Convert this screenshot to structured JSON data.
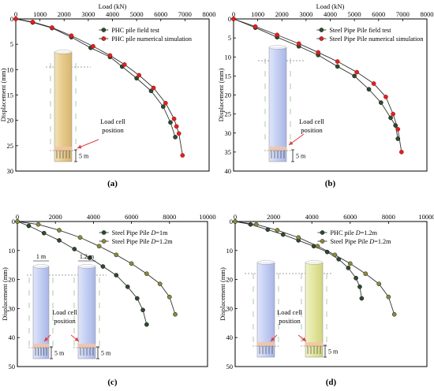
{
  "chart_data": [
    {
      "panel_label": "(a)",
      "type": "line",
      "xlabel": "Load (kN)",
      "ylabel": "Displacement (mm)",
      "xlim": [
        0,
        8000
      ],
      "ylim": [
        0,
        30
      ],
      "x_ticks": [
        0,
        1000,
        2000,
        3000,
        4000,
        5000,
        6000,
        7000,
        8000
      ],
      "y_ticks": [
        0,
        5,
        10,
        15,
        20,
        25,
        30
      ],
      "legend_position": "top-right",
      "series": [
        {
          "name": "PHC pile field test",
          "marker": "dark-circle",
          "color": "#2e4a2e",
          "x": [
            0,
            700,
            1500,
            2300,
            3100,
            3900,
            4400,
            5000,
            5600,
            6100,
            6400,
            6600
          ],
          "y": [
            0,
            0.7,
            1.8,
            3.6,
            5.7,
            7.5,
            9.4,
            11.7,
            14.2,
            17.3,
            20.4,
            23.3
          ]
        },
        {
          "name": "PHC pile  numerical simulation",
          "marker": "red-circle",
          "color": "#e02020",
          "x": [
            0,
            700,
            1500,
            2300,
            3200,
            3900,
            4500,
            5100,
            5700,
            6200,
            6550,
            6650,
            6750,
            6900
          ],
          "y": [
            0,
            0.6,
            1.7,
            3.3,
            5.4,
            7.2,
            9.0,
            11.1,
            13.6,
            16.6,
            19.7,
            21.2,
            22.6,
            26.9
          ]
        }
      ],
      "annotations": [
        "Load cell position",
        "5 m"
      ]
    },
    {
      "panel_label": "(b)",
      "type": "line",
      "xlabel": "Load (kN)",
      "ylabel": "Displacement (mm)",
      "xlim": [
        0,
        8000
      ],
      "ylim": [
        0,
        40
      ],
      "x_ticks": [
        0,
        1000,
        2000,
        3000,
        4000,
        5000,
        6000,
        7000,
        8000
      ],
      "y_ticks": [
        0,
        5,
        10,
        15,
        20,
        25,
        30,
        35,
        40
      ],
      "legend_position": "top-right",
      "series": [
        {
          "name": "Steel Pipe Pile field test",
          "marker": "dark-circle",
          "color": "#2e4a2e",
          "x": [
            0,
            900,
            1800,
            2700,
            3500,
            4300,
            5000,
            5600,
            6100,
            6500,
            6700,
            6800
          ],
          "y": [
            0,
            2.3,
            4.8,
            7.2,
            9.5,
            12.5,
            15.0,
            18.5,
            22.0,
            26.0,
            28.0,
            31.5
          ]
        },
        {
          "name": "Steel Pipe Pile numerical simulation",
          "marker": "red-circle",
          "color": "#e02020",
          "x": [
            0,
            900,
            1800,
            2700,
            3500,
            4300,
            5100,
            5800,
            6300,
            6600,
            6800,
            6950
          ],
          "y": [
            0,
            2.0,
            4.2,
            6.5,
            8.8,
            11.2,
            14.0,
            17.0,
            20.5,
            25.0,
            29.0,
            35.0
          ]
        }
      ],
      "annotations": [
        "Load cell position",
        "5 m"
      ]
    },
    {
      "panel_label": "(c)",
      "type": "line",
      "xlabel": "",
      "ylabel": "Displacement (mm)",
      "xlim": [
        0,
        10000
      ],
      "ylim": [
        0,
        50
      ],
      "x_ticks": [
        0,
        2000,
        4000,
        6000,
        8000,
        10000
      ],
      "y_ticks": [
        0,
        10,
        20,
        30,
        40,
        50
      ],
      "legend_position": "top-right",
      "series": [
        {
          "name": "Steel Pipe Pile D=1m",
          "marker": "dark-circle",
          "color": "#2e4a2e",
          "x": [
            0,
            600,
            1400,
            2200,
            3000,
            3800,
            4500,
            5200,
            5800,
            6300,
            6600,
            6800
          ],
          "y": [
            0,
            1.5,
            4.0,
            6.5,
            9.5,
            12.5,
            15.5,
            18.5,
            22.5,
            26.5,
            30.5,
            35.5
          ]
        },
        {
          "name": "Steel Pipe Pile D=1.2m",
          "marker": "olive-circle",
          "color": "#8a8a3a",
          "x": [
            0,
            1100,
            2200,
            3300,
            4300,
            5200,
            6000,
            6800,
            7500,
            8000,
            8300
          ],
          "y": [
            0,
            1.0,
            3.0,
            5.5,
            8.5,
            11.5,
            14.5,
            18.0,
            21.5,
            26.0,
            32.0
          ]
        }
      ],
      "annotations": [
        "1 m",
        "1.2 m",
        "Load cell position",
        "5 m",
        "5 m"
      ]
    },
    {
      "panel_label": "(d)",
      "type": "line",
      "xlabel": "",
      "ylabel": "Displacement (mm)",
      "xlim": [
        0,
        10000
      ],
      "ylim": [
        0,
        50
      ],
      "x_ticks": [
        0,
        2000,
        4000,
        6000,
        8000,
        10000
      ],
      "y_ticks": [
        0,
        10,
        20,
        30,
        40,
        50
      ],
      "legend_position": "top-right",
      "series": [
        {
          "name": "PHC pile  D=1.2m",
          "marker": "dark-circle",
          "color": "#2e4a2e",
          "x": [
            0,
            800,
            1700,
            2500,
            3300,
            4100,
            4800,
            5400,
            5900,
            6300,
            6500,
            6600
          ],
          "y": [
            0,
            1.0,
            2.8,
            4.5,
            6.5,
            8.5,
            10.5,
            13.0,
            16.0,
            19.5,
            22.5,
            26.5
          ]
        },
        {
          "name": "Steel Pipe Pile D=1.2m",
          "marker": "olive-circle",
          "color": "#8a8a3a",
          "x": [
            0,
            1100,
            2200,
            3300,
            4300,
            5200,
            6000,
            6800,
            7500,
            8000,
            8300
          ],
          "y": [
            0,
            1.0,
            3.0,
            5.5,
            8.5,
            11.5,
            14.5,
            18.0,
            21.5,
            26.0,
            32.0
          ]
        }
      ],
      "annotations": [
        "Load cell position",
        "5 m"
      ]
    }
  ]
}
